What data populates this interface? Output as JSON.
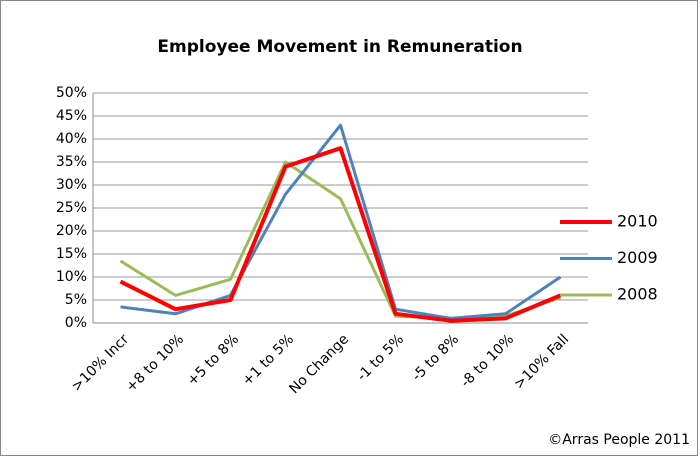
{
  "chart_data": {
    "type": "line",
    "title": "Employee Movement in Remuneration",
    "categories": [
      ">10% Incr",
      "+8 to 10%",
      "+5 to 8%",
      "+1 to 5%",
      "No Change",
      "-1 to 5%",
      "-5 to 8%",
      "-8 to 10%",
      ">10% Fall"
    ],
    "series": [
      {
        "name": "2010",
        "color": "#ff0000",
        "values": [
          9,
          3,
          5,
          34,
          38,
          2,
          0.5,
          1,
          6
        ]
      },
      {
        "name": "2009",
        "color": "#4f81bd",
        "values": [
          3.5,
          2,
          6,
          28,
          43,
          3,
          1,
          2,
          10
        ]
      },
      {
        "name": "2008",
        "color": "#9bbb59",
        "values": [
          13.5,
          6,
          9.5,
          35,
          27,
          1.5,
          1,
          1.5,
          5.5
        ]
      }
    ],
    "ylim": [
      0,
      50
    ],
    "yticks": [
      {
        "value": 0,
        "label": "0%"
      },
      {
        "value": 5,
        "label": "5%"
      },
      {
        "value": 10,
        "label": "10%"
      },
      {
        "value": 15,
        "label": "15%"
      },
      {
        "value": 20,
        "label": "20%"
      },
      {
        "value": 25,
        "label": "25%"
      },
      {
        "value": 30,
        "label": "30%"
      },
      {
        "value": 35,
        "label": "35%"
      },
      {
        "value": 40,
        "label": "40%"
      },
      {
        "value": 45,
        "label": "45%"
      },
      {
        "value": 50,
        "label": "50%"
      }
    ],
    "grid": true,
    "legend": "right",
    "annotation": "©Arras People 2011"
  }
}
